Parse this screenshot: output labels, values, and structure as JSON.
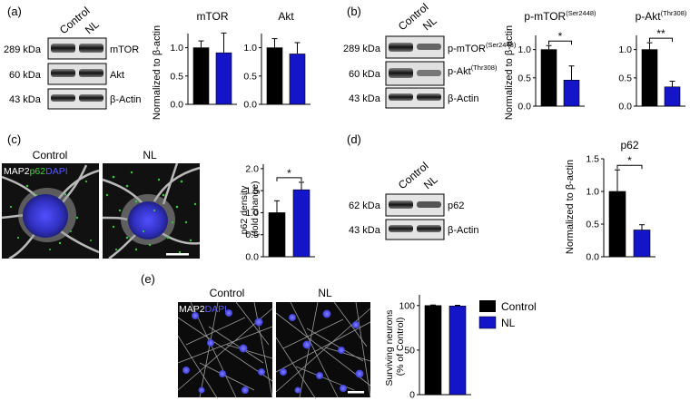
{
  "panels": {
    "a": {
      "label": "(a)",
      "lanes": [
        "Control",
        "NL"
      ],
      "blots": [
        {
          "kda": "289 kDa",
          "name": "mTOR"
        },
        {
          "kda": "60 kDa",
          "name": "Akt"
        },
        {
          "kda": "43 kDa",
          "name": "β-Actin"
        }
      ],
      "ylabel": "Normalized to β-actin"
    },
    "b": {
      "label": "(b)",
      "lanes": [
        "Control",
        "NL"
      ],
      "blots": [
        {
          "kda": "289 kDa",
          "name": "p-mTOR",
          "sup": "(Ser2448)"
        },
        {
          "kda": "60 kDa",
          "name": "p-Akt",
          "sup": "(Thr308)"
        },
        {
          "kda": "43 kDa",
          "name": "β-Actin"
        }
      ],
      "ylabel": "Normalized to β-actin"
    },
    "c": {
      "label": "(c)",
      "image_titles": [
        "Control",
        "NL"
      ],
      "stain": [
        "MAP2",
        "p62",
        "DAPI"
      ],
      "ylabel_lines": [
        "p62 density",
        "(fold change)"
      ]
    },
    "d": {
      "label": "(d)",
      "lanes": [
        "Control",
        "NL"
      ],
      "blots": [
        {
          "kda": "62 kDa",
          "name": "p62"
        },
        {
          "kda": "43 kDa",
          "name": "β-Actin"
        }
      ],
      "ylabel": "Normalized to β-actin"
    },
    "e": {
      "label": "(e)",
      "image_titles": [
        "Control",
        "NL"
      ],
      "stain": [
        "MAP2",
        "DAPI"
      ],
      "ylabel_lines": [
        "Surviving neurons",
        "(% of Control)"
      ]
    }
  },
  "legend": [
    {
      "name": "Control",
      "color": "#000000"
    },
    {
      "name": "NL",
      "color": "#1414c8"
    }
  ],
  "colors": {
    "control": "#000000",
    "nl": "#1414c8",
    "map2": "#dcdcdc",
    "p62": "#33cc33",
    "dapi": "#3a3ad8"
  },
  "chart_data": [
    {
      "id": "a-mtor",
      "type": "bar",
      "title": "mTOR",
      "categories": [
        "Control",
        "NL"
      ],
      "values": [
        1.0,
        0.91
      ],
      "errors": [
        0.12,
        0.35
      ],
      "ylim": [
        0,
        1.25
      ],
      "yticks": [
        "0.0",
        "0.5",
        "1.0"
      ]
    },
    {
      "id": "a-akt",
      "type": "bar",
      "title": "Akt",
      "categories": [
        "Control",
        "NL"
      ],
      "values": [
        1.0,
        0.89
      ],
      "errors": [
        0.16,
        0.2
      ],
      "ylim": [
        0,
        1.25
      ],
      "yticks": [
        "0.0",
        "0.5",
        "1.0"
      ]
    },
    {
      "id": "b-pmtor",
      "type": "bar",
      "title": "p-mTOR",
      "title_sup": "(Ser2448)",
      "categories": [
        "Control",
        "NL"
      ],
      "values": [
        1.0,
        0.46
      ],
      "errors": [
        0.07,
        0.25
      ],
      "ylim": [
        0,
        1.25
      ],
      "yticks": [
        "0.0",
        "0.5",
        "1.0"
      ],
      "significance": "*"
    },
    {
      "id": "b-pakt",
      "type": "bar",
      "title": "p-Akt",
      "title_sup": "(Thr308)",
      "categories": [
        "Control",
        "NL"
      ],
      "values": [
        1.0,
        0.34
      ],
      "errors": [
        0.12,
        0.1
      ],
      "ylim": [
        0,
        1.25
      ],
      "yticks": [
        "0.0",
        "0.5",
        "1.0"
      ],
      "significance": "**"
    },
    {
      "id": "c-p62",
      "type": "bar",
      "categories": [
        "Control",
        "NL"
      ],
      "values": [
        1.0,
        1.52
      ],
      "errors": [
        0.27,
        0.17
      ],
      "ylim": [
        0,
        2.1
      ],
      "yticks": [
        "0.0",
        "0.5",
        "1.0",
        "1.5",
        "2.0"
      ],
      "significance": "*"
    },
    {
      "id": "d-p62",
      "type": "bar",
      "title": "p62",
      "categories": [
        "Control",
        "NL"
      ],
      "values": [
        1.0,
        0.41
      ],
      "errors": [
        0.33,
        0.08
      ],
      "ylim": [
        0,
        1.5
      ],
      "yticks": [
        "0.0",
        "0.5",
        "1.0",
        "1.5"
      ],
      "significance": "*"
    },
    {
      "id": "e-survival",
      "type": "bar",
      "categories": [
        "Control",
        "NL"
      ],
      "values": [
        100,
        99.5
      ],
      "errors": [
        0.6,
        0.8
      ],
      "ylim": [
        0,
        112
      ],
      "yticks": [
        "0",
        "50",
        "100"
      ]
    }
  ]
}
